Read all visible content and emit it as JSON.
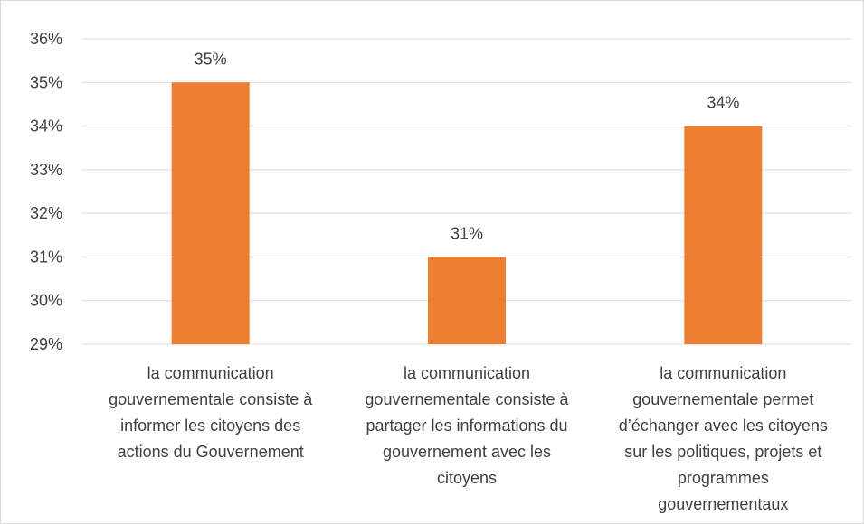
{
  "chart_data": {
    "type": "bar",
    "title": "",
    "xlabel": "",
    "ylabel": "",
    "ylim": [
      29,
      36
    ],
    "y_tick_step": 1,
    "y_tick_suffix": "%",
    "grid": true,
    "legend": "none",
    "bar_color": "#ED7D31",
    "categories": [
      [
        "la communication",
        "gouvernementale consiste à",
        "informer les citoyens des",
        "actions du Gouvernement"
      ],
      [
        "la communication",
        "gouvernementale consiste à",
        "partager les informations du",
        "gouvernement avec les",
        "citoyens"
      ],
      [
        "la communication",
        "gouvernementale permet",
        "d’échanger avec les citoyens",
        "sur les politiques, projets et",
        "programmes",
        "gouvernementaux"
      ]
    ],
    "values": [
      35,
      31,
      34
    ],
    "data_labels": [
      "35%",
      "31%",
      "34%"
    ],
    "y_ticks": [
      "29%",
      "30%",
      "31%",
      "32%",
      "33%",
      "34%",
      "35%",
      "36%"
    ]
  }
}
